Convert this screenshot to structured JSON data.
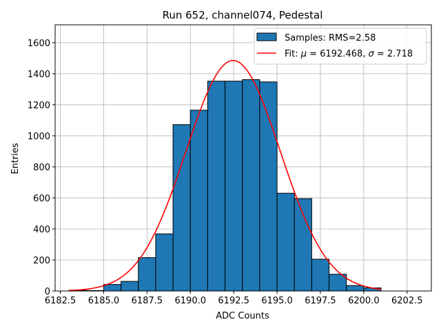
{
  "chart_data": {
    "type": "bar",
    "title": "Run 652, channel074, Pedestal",
    "xlabel": "ADC Counts",
    "ylabel": "Entries",
    "xlim": [
      6182.2,
      6203.9
    ],
    "ylim": [
      0,
      1715
    ],
    "grid": true,
    "legend_position": "top-right",
    "x_ticks": [
      6182.5,
      6185.0,
      6187.5,
      6190.0,
      6192.5,
      6195.0,
      6197.5,
      6200.0,
      6202.5
    ],
    "x_tick_labels": [
      "6182.5",
      "6185.0",
      "6187.5",
      "6190.0",
      "6192.5",
      "6195.0",
      "6197.5",
      "6200.0",
      "6202.5"
    ],
    "y_ticks": [
      0,
      200,
      400,
      600,
      800,
      1000,
      1200,
      1400,
      1600
    ],
    "y_tick_labels": [
      "0",
      "200",
      "400",
      "600",
      "800",
      "1000",
      "1200",
      "1400",
      "1600"
    ],
    "histogram": {
      "name": "Samples: RMS=2.58",
      "color": "#1f77b4",
      "edge_color": "#000000",
      "bin_edges": [
        6183,
        6184,
        6185,
        6186,
        6187,
        6188,
        6189,
        6190,
        6191,
        6192,
        6193,
        6194,
        6195,
        6196,
        6197,
        6198,
        6199,
        6200,
        6201
      ],
      "counts": [
        5,
        3,
        42,
        62,
        215,
        368,
        1072,
        1165,
        1352,
        1352,
        1362,
        1347,
        630,
        595,
        205,
        108,
        35,
        20
      ]
    },
    "fit": {
      "name": "Fit: μ = 6192.468, σ = 2.718",
      "color": "#ff0000",
      "mu": 6192.468,
      "sigma": 2.718,
      "amplitude": 1485,
      "x_range": [
        6183,
        6201
      ]
    },
    "legend": {
      "hist_prefix": "Samples: RMS=2.58",
      "fit_prefix": "Fit: ",
      "mu_symbol": "μ",
      "fit_mu_value": " = 6192.468, ",
      "sigma_symbol": "σ",
      "fit_sigma_value": " = 2.718"
    }
  }
}
